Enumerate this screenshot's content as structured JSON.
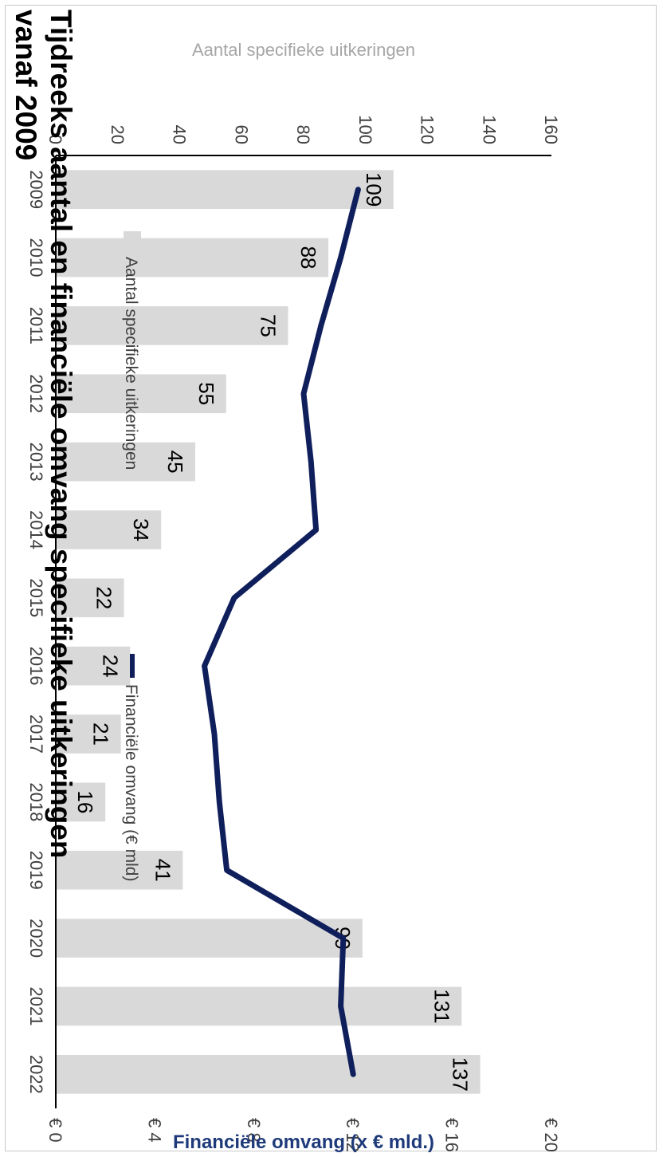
{
  "chart_data": {
    "type": "bar",
    "title": "Tijdreeks aantal en financiële omvang specifieke uitkeringen vanaf 2009",
    "categories": [
      "2009",
      "2010",
      "2011",
      "2012",
      "2013",
      "2014",
      "2015",
      "2016",
      "2017",
      "2018",
      "2019",
      "2020",
      "2021",
      "2022"
    ],
    "series": [
      {
        "name": "Aantal specifieke uitkeringen",
        "type": "bar",
        "axis": "primary",
        "values": [
          109,
          88,
          75,
          55,
          45,
          34,
          22,
          24,
          21,
          16,
          41,
          99,
          131,
          137
        ]
      },
      {
        "name": "Financiële omvang (€ mld)",
        "type": "line",
        "axis": "secondary",
        "values": [
          12.2,
          11.5,
          10.7,
          10.0,
          10.3,
          10.5,
          7.2,
          6.0,
          6.4,
          6.6,
          6.9,
          11.6,
          11.5,
          12.0
        ]
      }
    ],
    "primary_axis": {
      "label": "Aantal specifieke uitkeringen",
      "range": [
        0,
        160
      ],
      "ticks": [
        "0",
        "20",
        "40",
        "60",
        "80",
        "100",
        "120",
        "140",
        "160"
      ]
    },
    "secondary_axis": {
      "label": "Financiële omvang (x € mld.)",
      "range": [
        0,
        20
      ],
      "ticks": [
        "€ 0",
        "€ 4",
        "€ 8",
        "€ 12",
        "€ 16",
        "€ 20"
      ]
    },
    "grid": false,
    "legend_position": "top",
    "orientation": "rotated 90° clockwise",
    "colors": {
      "bar": "#d9d9d9",
      "line": "#0f1f5c",
      "secondary_axis_label": "#1f3a7a",
      "primary_axis_label": "#a6a6a6"
    }
  }
}
